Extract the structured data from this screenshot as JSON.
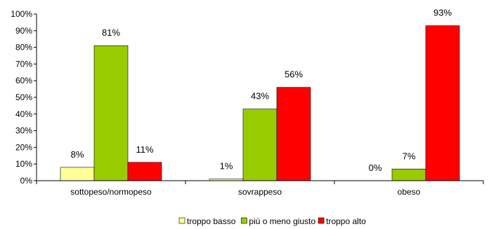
{
  "chart_data": {
    "type": "bar",
    "categories": [
      "sottopeso/normopeso",
      "sovrappeso",
      "obeso"
    ],
    "series": [
      {
        "name": "troppo basso",
        "values": [
          8,
          1,
          0
        ],
        "labels": [
          "8%",
          "1%",
          "0%"
        ],
        "color": "#ffff99"
      },
      {
        "name": "più o meno giusto",
        "values": [
          81,
          43,
          7
        ],
        "labels": [
          "81%",
          "43%",
          "7%"
        ],
        "color": "#99cc00"
      },
      {
        "name": "troppo alto",
        "values": [
          11,
          56,
          93
        ],
        "labels": [
          "11%",
          "56%",
          "93%"
        ],
        "color": "#ff0000"
      }
    ],
    "ylim": [
      0,
      100
    ],
    "y_ticks": [
      "0%",
      "10%",
      "20%",
      "30%",
      "40%",
      "50%",
      "60%",
      "70%",
      "80%",
      "90%",
      "100%"
    ],
    "y_tick_values": [
      0,
      10,
      20,
      30,
      40,
      50,
      60,
      70,
      80,
      90,
      100
    ],
    "grid": false,
    "legend_position": "bottom"
  }
}
